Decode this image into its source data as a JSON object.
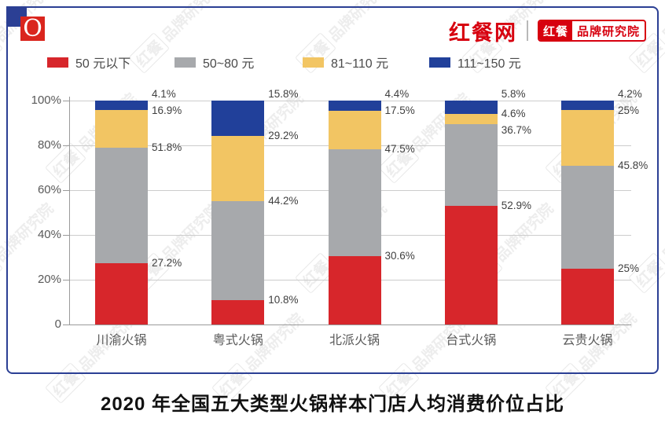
{
  "header": {
    "logo_letter": "O",
    "site_name": "红餐网",
    "badge_left": "红餐",
    "badge_right": "品牌研究院",
    "brand_red": "#d7000f",
    "frame_blue": "#2b3f94"
  },
  "legend": {
    "items": [
      {
        "label": "50 元以下",
        "color": "#d7262b"
      },
      {
        "label": "50~80 元",
        "color": "#a7a9ac"
      },
      {
        "label": "81~110 元",
        "color": "#f2c563"
      },
      {
        "label": "111~150 元",
        "color": "#21409a"
      }
    ]
  },
  "chart_data": {
    "type": "bar",
    "stacked": true,
    "title": "2020 年全国五大类型火锅样本门店人均消费价位占比",
    "categories": [
      "川渝火锅",
      "粤式火锅",
      "北派火锅",
      "台式火锅",
      "云贵火锅"
    ],
    "series": [
      {
        "name": "50 元以下",
        "color": "#d7262b",
        "values": [
          27.2,
          10.8,
          30.6,
          52.9,
          25
        ],
        "value_labels": [
          "27.2%",
          "10.8%",
          "30.6%",
          "52.9%",
          "25%"
        ]
      },
      {
        "name": "50~80 元",
        "color": "#a7a9ac",
        "values": [
          51.8,
          44.2,
          47.5,
          36.7,
          45.8
        ],
        "value_labels": [
          "51.8%",
          "44.2%",
          "47.5%",
          "36.7%",
          "45.8%"
        ]
      },
      {
        "name": "81~110 元",
        "color": "#f2c563",
        "values": [
          16.9,
          29.2,
          17.5,
          4.6,
          25
        ],
        "value_labels": [
          "16.9%",
          "29.2%",
          "17.5%",
          "4.6%",
          "25%"
        ]
      },
      {
        "name": "111~150 元",
        "color": "#21409a",
        "values": [
          4.1,
          15.8,
          4.4,
          5.8,
          4.2
        ],
        "value_labels": [
          "4.1%",
          "15.8%",
          "4.4%",
          "5.8%",
          "4.2%"
        ]
      }
    ],
    "y_ticks": [
      "100%",
      "80%",
      "60%",
      "40%",
      "20%",
      "0"
    ],
    "ylim": [
      0,
      100
    ],
    "grid": true,
    "legend_position": "top"
  },
  "title": "2020 年全国五大类型火锅样本门店人均消费价位占比",
  "watermark": {
    "badge": "红餐",
    "text": "品牌研究院"
  }
}
